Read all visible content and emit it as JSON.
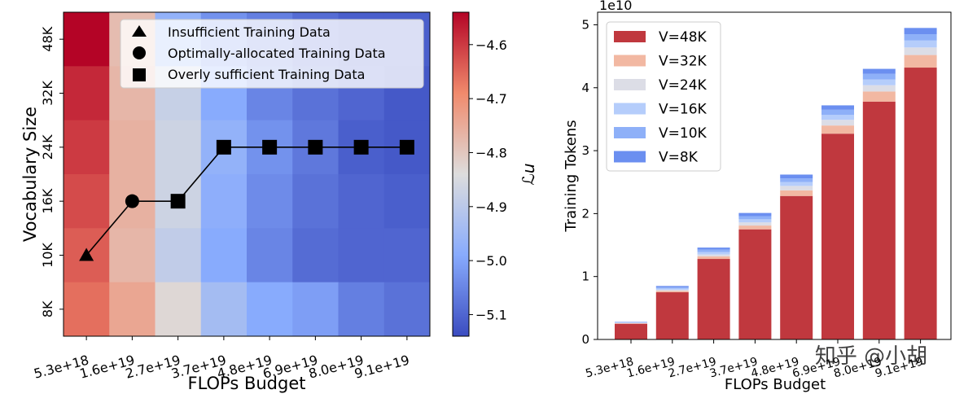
{
  "chart_data": [
    {
      "type": "heatmap",
      "title": "",
      "xlabel": "FLOPs Budget",
      "ylabel": "Vocabulary Size",
      "x_categories": [
        "5.3e+18",
        "1.6e+19",
        "2.7e+19",
        "3.7e+19",
        "4.8e+19",
        "6.9e+19",
        "8.0e+19",
        "9.1e+19"
      ],
      "y_categories": [
        "48K",
        "32K",
        "24K",
        "16K",
        "10K",
        "8K"
      ],
      "values": [
        [
          -4.53,
          -4.78,
          -4.97,
          -5.03,
          -5.06,
          -5.09,
          -5.11,
          -5.11
        ],
        [
          -4.58,
          -4.77,
          -4.88,
          -4.99,
          -5.05,
          -5.08,
          -5.1,
          -5.12
        ],
        [
          -4.6,
          -4.76,
          -4.87,
          -4.97,
          -5.03,
          -5.07,
          -5.11,
          -5.12
        ],
        [
          -4.62,
          -4.76,
          -4.87,
          -4.98,
          -5.04,
          -5.08,
          -5.1,
          -5.11
        ],
        [
          -4.64,
          -4.77,
          -4.89,
          -4.99,
          -5.05,
          -5.09,
          -5.1,
          -5.1
        ],
        [
          -4.66,
          -4.74,
          -4.83,
          -4.94,
          -4.99,
          -5.01,
          -5.06,
          -5.08
        ]
      ],
      "colorbar": {
        "label": "ℒu",
        "range": [
          -5.14,
          -4.54
        ],
        "ticks": [
          "-4.6",
          "-4.7",
          "-4.8",
          "-4.9",
          "-5.0",
          "-5.1"
        ],
        "tick_values": [
          -4.6,
          -4.7,
          -4.8,
          -4.9,
          -5.0,
          -5.1
        ],
        "colormap": "coolwarm"
      },
      "line": {
        "x_index": [
          0,
          1,
          2,
          3,
          4,
          5,
          6,
          7
        ],
        "y_value": [
          "10K",
          "16K",
          "16K",
          "24K",
          "24K",
          "24K",
          "24K",
          "24K"
        ],
        "markers": [
          "triangle",
          "circle",
          "square",
          "square",
          "square",
          "square",
          "square",
          "square"
        ]
      },
      "legend": {
        "placement": "top-center",
        "entries": [
          {
            "marker": "triangle",
            "label": "Insufficient Training Data"
          },
          {
            "marker": "circle",
            "label": "Optimally-allocated Training Data"
          },
          {
            "marker": "square",
            "label": "Overly sufficient Training Data"
          }
        ]
      }
    },
    {
      "type": "bar",
      "stacked": true,
      "xlabel": "FLOPs Budget",
      "ylabel": "Training Tokens",
      "offset_label": "1e10",
      "categories": [
        "5.3e+18",
        "1.6e+19",
        "2.7e+19",
        "3.7e+19",
        "4.8e+19",
        "6.9e+19",
        "8.0e+19",
        "9.1e+19"
      ],
      "ylim": [
        0,
        5.2
      ],
      "yticks": [
        "0",
        "1",
        "2",
        "3",
        "4",
        "5"
      ],
      "legend_placement": "top-left",
      "series": [
        {
          "name": "V=48K",
          "color": "#c0383e",
          "values": [
            0.25,
            0.75,
            1.28,
            1.75,
            2.28,
            3.27,
            3.78,
            4.32
          ]
        },
        {
          "name": "V=32K",
          "color": "#f2b8a2",
          "values": [
            0.006,
            0.02,
            0.04,
            0.06,
            0.09,
            0.13,
            0.16,
            0.2
          ]
        },
        {
          "name": "V=24K",
          "color": "#dcdde6",
          "values": [
            0.006,
            0.02,
            0.03,
            0.05,
            0.07,
            0.09,
            0.1,
            0.12
          ]
        },
        {
          "name": "V=16K",
          "color": "#b5cdfb",
          "values": [
            0.006,
            0.02,
            0.04,
            0.05,
            0.06,
            0.08,
            0.09,
            0.11
          ]
        },
        {
          "name": "V=10K",
          "color": "#8eb0f8",
          "values": [
            0.006,
            0.02,
            0.04,
            0.05,
            0.06,
            0.08,
            0.09,
            0.1
          ]
        },
        {
          "name": "V=8K",
          "color": "#6b8ff0",
          "values": [
            0.006,
            0.02,
            0.03,
            0.05,
            0.06,
            0.07,
            0.08,
            0.1
          ]
        }
      ]
    }
  ],
  "watermark": "知乎 @小胡"
}
